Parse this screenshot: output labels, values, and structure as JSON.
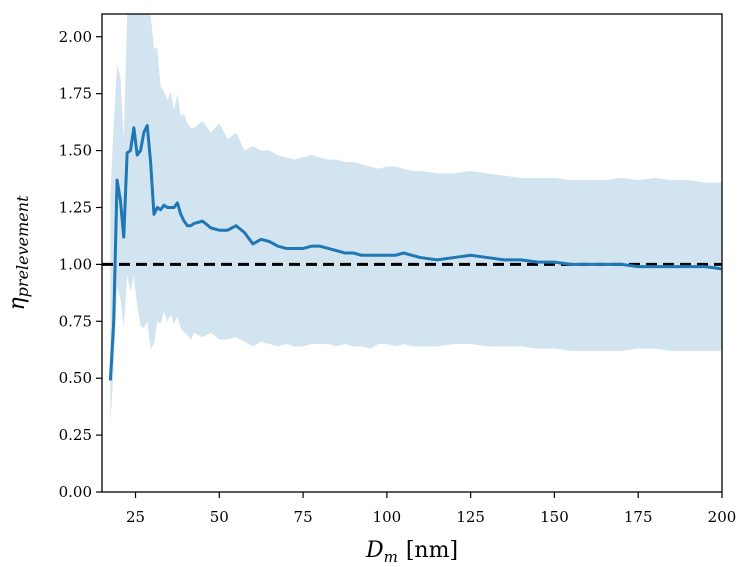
{
  "chart_data": {
    "type": "line",
    "title": "",
    "xlabel": {
      "main": "D",
      "sub": "m",
      "unit": "[nm]"
    },
    "ylabel": {
      "main": "η",
      "sub": "prelevement"
    },
    "xlim": [
      15,
      200
    ],
    "ylim": [
      0,
      2.1
    ],
    "xticks": [
      25,
      50,
      75,
      100,
      125,
      150,
      175,
      200
    ],
    "xtick_labels": [
      "25",
      "50",
      "75",
      "100",
      "125",
      "150",
      "175",
      "200"
    ],
    "yticks": [
      0,
      0.25,
      0.5,
      0.75,
      1.0,
      1.25,
      1.5,
      1.75,
      2.0
    ],
    "ytick_labels": [
      "0.00",
      "0.25",
      "0.50",
      "0.75",
      "1.00",
      "1.25",
      "1.50",
      "1.75",
      "2.00"
    ],
    "grid": false,
    "reference_line": {
      "y": 1.0,
      "style": "dashed",
      "color": "#000000"
    },
    "series": [
      {
        "color": "#1f77b4",
        "band_color": "#1f77b4",
        "band_opacity": 0.2,
        "x": [
          17.5,
          18.5,
          19.5,
          20.5,
          21.5,
          22.5,
          23.5,
          24.5,
          25.5,
          26.5,
          27.5,
          28.5,
          29.5,
          30.5,
          31.5,
          32.5,
          33.5,
          34.5,
          35.5,
          36.5,
          37.5,
          38.5,
          39.5,
          40.5,
          41.5,
          42.5,
          45,
          47.5,
          50,
          52.5,
          55,
          57.5,
          60,
          62.5,
          65,
          67.5,
          70,
          72.5,
          75,
          77.5,
          80,
          82.5,
          85,
          87.5,
          90,
          92.5,
          95,
          97.5,
          100,
          102.5,
          105,
          107.5,
          110,
          115,
          120,
          125,
          130,
          135,
          140,
          145,
          150,
          155,
          160,
          165,
          170,
          175,
          180,
          185,
          190,
          195,
          200
        ],
        "y": [
          0.49,
          0.75,
          1.37,
          1.28,
          1.12,
          1.49,
          1.5,
          1.6,
          1.48,
          1.5,
          1.58,
          1.61,
          1.45,
          1.22,
          1.25,
          1.24,
          1.26,
          1.25,
          1.25,
          1.25,
          1.27,
          1.22,
          1.19,
          1.17,
          1.17,
          1.18,
          1.19,
          1.16,
          1.15,
          1.15,
          1.17,
          1.14,
          1.09,
          1.11,
          1.1,
          1.08,
          1.07,
          1.07,
          1.07,
          1.08,
          1.08,
          1.07,
          1.06,
          1.05,
          1.05,
          1.04,
          1.04,
          1.04,
          1.04,
          1.04,
          1.05,
          1.04,
          1.03,
          1.02,
          1.03,
          1.04,
          1.03,
          1.02,
          1.02,
          1.01,
          1.01,
          1.0,
          1.0,
          1.0,
          1.0,
          0.99,
          0.99,
          0.99,
          0.99,
          0.99,
          0.98
        ],
        "upper": [
          1.3,
          1.62,
          1.88,
          1.82,
          1.55,
          2.1,
          2.1,
          2.1,
          2.1,
          2.1,
          2.1,
          2.1,
          2.1,
          1.95,
          1.95,
          1.78,
          1.76,
          1.72,
          1.76,
          1.68,
          1.75,
          1.65,
          1.66,
          1.62,
          1.6,
          1.6,
          1.63,
          1.58,
          1.62,
          1.55,
          1.58,
          1.5,
          1.52,
          1.5,
          1.5,
          1.48,
          1.47,
          1.46,
          1.47,
          1.48,
          1.47,
          1.46,
          1.46,
          1.45,
          1.45,
          1.44,
          1.43,
          1.42,
          1.43,
          1.43,
          1.42,
          1.41,
          1.41,
          1.4,
          1.4,
          1.41,
          1.4,
          1.39,
          1.38,
          1.38,
          1.38,
          1.37,
          1.37,
          1.37,
          1.38,
          1.37,
          1.38,
          1.37,
          1.37,
          1.36,
          1.36
        ],
        "lower": [
          0.3,
          0.55,
          0.9,
          0.85,
          0.72,
          0.95,
          0.88,
          0.95,
          0.82,
          0.73,
          0.72,
          0.75,
          0.63,
          0.65,
          0.75,
          0.74,
          0.79,
          0.75,
          0.78,
          0.74,
          0.77,
          0.72,
          0.7,
          0.69,
          0.67,
          0.7,
          0.68,
          0.7,
          0.67,
          0.67,
          0.68,
          0.66,
          0.64,
          0.66,
          0.65,
          0.64,
          0.65,
          0.64,
          0.64,
          0.65,
          0.65,
          0.65,
          0.64,
          0.65,
          0.64,
          0.64,
          0.63,
          0.65,
          0.65,
          0.64,
          0.65,
          0.64,
          0.64,
          0.64,
          0.65,
          0.65,
          0.64,
          0.64,
          0.64,
          0.63,
          0.63,
          0.62,
          0.62,
          0.62,
          0.62,
          0.63,
          0.63,
          0.62,
          0.62,
          0.62,
          0.62
        ]
      }
    ]
  }
}
